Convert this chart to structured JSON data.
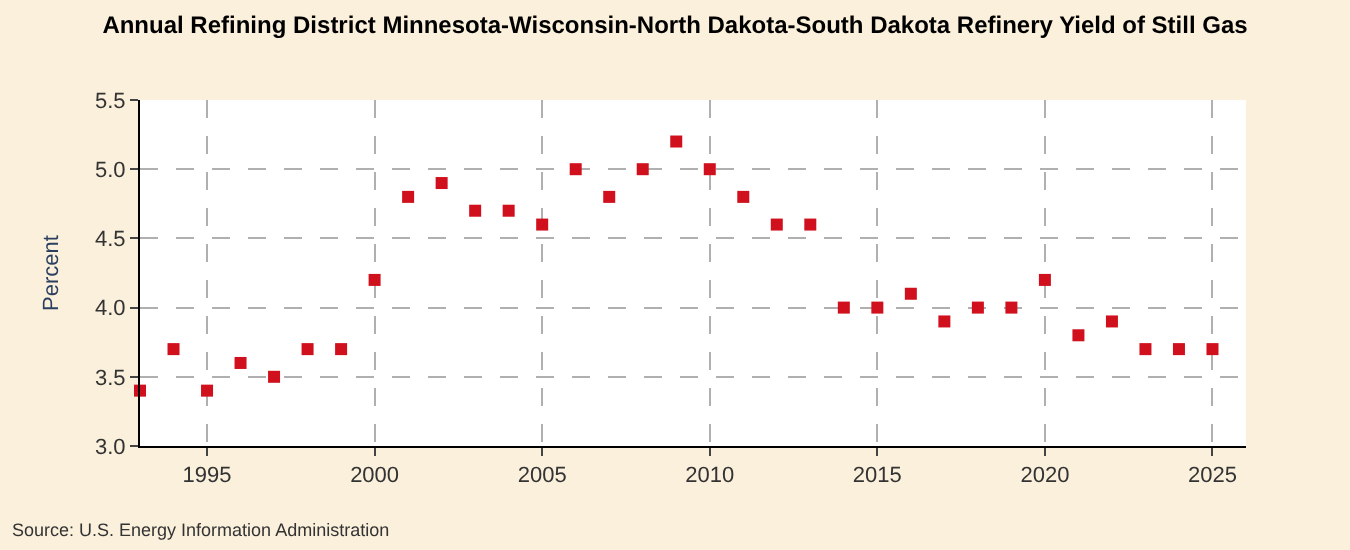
{
  "chart_data": {
    "type": "scatter",
    "title": "Annual Refining District Minnesota-Wisconsin-North Dakota-South Dakota Refinery Yield of Still Gas",
    "ylabel": "Percent",
    "x": [
      1993,
      1994,
      1995,
      1996,
      1997,
      1998,
      1999,
      2000,
      2001,
      2002,
      2003,
      2004,
      2005,
      2006,
      2007,
      2008,
      2009,
      2010,
      2011,
      2012,
      2013,
      2014,
      2015,
      2016,
      2017,
      2018,
      2019,
      2020,
      2021,
      2022,
      2023,
      2024,
      2025
    ],
    "series": [
      {
        "color": "#d0101c",
        "values": [
          3.4,
          3.7,
          3.4,
          3.6,
          3.5,
          3.7,
          3.7,
          4.2,
          4.8,
          4.9,
          4.7,
          4.7,
          4.6,
          5.0,
          4.8,
          5.0,
          5.2,
          5.0,
          4.8,
          4.6,
          4.6,
          4.0,
          4.0,
          4.1,
          3.9,
          4.0,
          4.0,
          4.2,
          3.8,
          3.9,
          3.7,
          3.7,
          3.7
        ]
      }
    ],
    "xlim": [
      1993,
      2026
    ],
    "xticks": [
      1995,
      2000,
      2005,
      2010,
      2015,
      2020,
      2025
    ],
    "ylim": [
      3.0,
      5.5
    ],
    "yticks": [
      {
        "value": 3.0,
        "label": "3.0"
      },
      {
        "value": 3.5,
        "label": "3.5"
      },
      {
        "value": 4.0,
        "label": "4.0"
      },
      {
        "value": 4.5,
        "label": "4.5"
      },
      {
        "value": 5.0,
        "label": "5.0"
      },
      {
        "value": 5.5,
        "label": "5.5"
      }
    ],
    "grid": true,
    "marker": "square",
    "legend": false,
    "annotations": [
      "Source: U.S. Energy Information Administration"
    ]
  }
}
